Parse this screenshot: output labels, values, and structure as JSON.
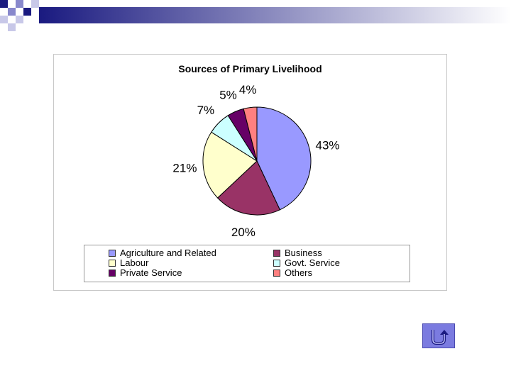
{
  "chart_data": {
    "type": "pie",
    "title": "Sources of Primary Livelihood",
    "categories": [
      "Agriculture and Related",
      "Business",
      "Labour",
      "Govt. Service",
      "Private Service",
      "Others"
    ],
    "values": [
      43,
      20,
      21,
      7,
      5,
      4
    ],
    "data_labels": [
      "43%",
      "20%",
      "21%",
      "7%",
      "5%",
      "4%"
    ],
    "colors": [
      "#9999ff",
      "#993366",
      "#ffffcc",
      "#ccffff",
      "#660066",
      "#ff8080"
    ],
    "legend_position": "bottom",
    "legend_order": [
      "Agriculture and Related",
      "Business",
      "Labour",
      "Govt. Service",
      "Private Service",
      "Others"
    ]
  },
  "icons": {
    "back": "return-arrow-icon"
  }
}
